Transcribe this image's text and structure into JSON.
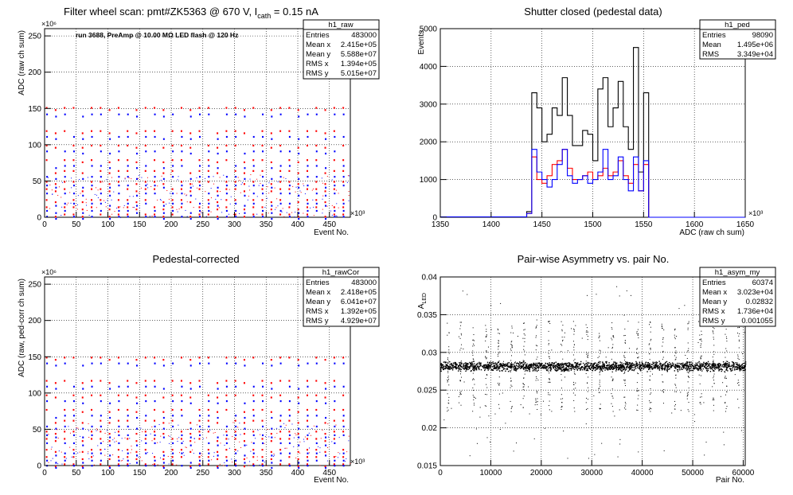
{
  "chart_data": [
    {
      "type": "scatter",
      "title": "Filter wheel scan: pmt#ZK5363 @   670 V, I",
      "title_sub": "cath",
      "title_tail": " = 0.15 nA",
      "annotation": "run 3688, PreAmp @ 10.00 MΩ LED flash @  120 Hz",
      "xlabel": "Event No.",
      "ylabel": "ADC (raw ch sum)",
      "x_exponent": "×10³",
      "y_exponent": "×10⁶",
      "xlim": [
        0,
        483
      ],
      "ylim": [
        0,
        260
      ],
      "x_ticks": [
        "0",
        "50",
        "100",
        "150",
        "200",
        "250",
        "300",
        "350",
        "400",
        "450"
      ],
      "y_ticks": [
        "0",
        "50",
        "100",
        "150",
        "200",
        "250"
      ],
      "grid": true,
      "stats": {
        "title": "h1_raw",
        "rows": [
          [
            "Entries",
            "483000"
          ],
          [
            "Mean x",
            "2.415e+05"
          ],
          [
            "Mean y",
            "5.588e+07"
          ],
          [
            "RMS x",
            "1.394e+05"
          ],
          [
            "RMS y",
            "5.015e+07"
          ]
        ]
      },
      "levels_red": [
        152,
        120,
        100,
        80,
        65,
        50,
        40,
        25,
        15,
        5
      ],
      "levels_blue": [
        143,
        112,
        92,
        72,
        57,
        45,
        34,
        20,
        10,
        2
      ],
      "colors": {
        "red": "#ff0000",
        "blue": "#0000ff"
      }
    },
    {
      "type": "line",
      "title": "Shutter closed (pedestal data)",
      "xlabel": "ADC (raw ch sum)",
      "ylabel": "Events",
      "x_exponent": "×10³",
      "xlim": [
        1350,
        1650
      ],
      "ylim": [
        0,
        5000
      ],
      "x_ticks": [
        "1350",
        "1400",
        "1450",
        "1500",
        "1550",
        "1600",
        "1650"
      ],
      "y_ticks": [
        "0",
        "1000",
        "2000",
        "3000",
        "4000",
        "5000"
      ],
      "grid": true,
      "stats": {
        "title": "h1_ped",
        "rows": [
          [
            "Entries",
            "98090"
          ],
          [
            "Mean",
            "1.495e+06"
          ],
          [
            "RMS",
            "3.349e+04"
          ]
        ]
      },
      "bin_width": 5,
      "series": [
        {
          "color": "#000000",
          "x": [
            1435,
            1440,
            1445,
            1450,
            1455,
            1460,
            1465,
            1470,
            1475,
            1480,
            1485,
            1490,
            1495,
            1500,
            1505,
            1510,
            1515,
            1520,
            1525,
            1530,
            1535,
            1540,
            1545,
            1550,
            1555
          ],
          "values": [
            150,
            3300,
            2900,
            2000,
            2200,
            2900,
            2700,
            3700,
            2700,
            1900,
            1900,
            2300,
            2200,
            1500,
            3400,
            3700,
            2400,
            2900,
            3600,
            2400,
            1800,
            4500,
            1200,
            3300,
            0
          ]
        },
        {
          "color": "#ff0000",
          "x": [
            1435,
            1440,
            1445,
            1450,
            1455,
            1460,
            1465,
            1470,
            1475,
            1480,
            1485,
            1490,
            1495,
            1500,
            1505,
            1510,
            1515,
            1520,
            1525,
            1530,
            1535,
            1540,
            1545,
            1550,
            1555
          ],
          "values": [
            100,
            1600,
            1000,
            900,
            1100,
            1400,
            1500,
            1800,
            1300,
            1000,
            1000,
            1100,
            1200,
            1000,
            1100,
            1300,
            1100,
            1200,
            1500,
            1100,
            900,
            1400,
            700,
            1400,
            0
          ]
        },
        {
          "color": "#0000ff",
          "x": [
            1435,
            1440,
            1445,
            1450,
            1455,
            1460,
            1465,
            1470,
            1475,
            1480,
            1485,
            1490,
            1495,
            1500,
            1505,
            1510,
            1515,
            1520,
            1525,
            1530,
            1535,
            1540,
            1545,
            1550,
            1555
          ],
          "values": [
            100,
            1800,
            1200,
            1000,
            800,
            1000,
            1400,
            1800,
            1100,
            900,
            1000,
            1100,
            900,
            1000,
            1200,
            1800,
            1000,
            1100,
            1600,
            1000,
            700,
            1600,
            700,
            1500,
            0
          ]
        }
      ]
    },
    {
      "type": "scatter",
      "title": "Pedestal-corrected",
      "xlabel": "Event No.",
      "ylabel": "ADC (raw, ped-corr ch sum)",
      "x_exponent": "×10³",
      "y_exponent": "×10⁶",
      "xlim": [
        0,
        483
      ],
      "ylim": [
        0,
        260
      ],
      "x_ticks": [
        "0",
        "50",
        "100",
        "150",
        "200",
        "250",
        "300",
        "350",
        "400",
        "450"
      ],
      "y_ticks": [
        "0",
        "50",
        "100",
        "150",
        "200",
        "250"
      ],
      "grid": true,
      "stats": {
        "title": "h1_rawCor",
        "rows": [
          [
            "Entries",
            "483000"
          ],
          [
            "Mean x",
            "2.418e+05"
          ],
          [
            "Mean y",
            "6.041e+07"
          ],
          [
            "RMS x",
            "1.392e+05"
          ],
          [
            "RMS y",
            "4.929e+07"
          ]
        ]
      },
      "levels_red": [
        150,
        118,
        98,
        78,
        63,
        48,
        38,
        23,
        13,
        3
      ],
      "levels_blue": [
        142,
        110,
        90,
        70,
        55,
        43,
        32,
        18,
        8,
        1
      ],
      "colors": {
        "red": "#ff0000",
        "blue": "#0000ff"
      }
    },
    {
      "type": "scatter",
      "title": "Pair-wise Asymmetry vs. pair No.",
      "xlabel": "Pair No.",
      "ylabel": "A",
      "ylabel_sub": "LED",
      "xlim": [
        0,
        60400
      ],
      "ylim": [
        0.015,
        0.04
      ],
      "x_ticks": [
        "0",
        "10000",
        "20000",
        "30000",
        "40000",
        "50000",
        "60000"
      ],
      "y_ticks": [
        "0.015",
        "0.02",
        "0.025",
        "0.03",
        "0.035",
        "0.04"
      ],
      "grid": true,
      "stats": {
        "title": "h1_asym_my",
        "rows": [
          [
            "Entries",
            "60374"
          ],
          [
            "Mean x",
            "3.023e+04"
          ],
          [
            "Mean y",
            "0.02832"
          ],
          [
            "RMS x",
            "1.736e+04"
          ],
          [
            "RMS y",
            "0.001055"
          ]
        ]
      },
      "band_center": 0.0282,
      "band_halfwidth": 0.0007,
      "spike_x": [
        1500,
        4000,
        6500,
        9000,
        11500,
        14000,
        16500,
        19000,
        21500,
        24000,
        26500,
        29000,
        31500,
        34000,
        36500,
        39000,
        41500,
        44000,
        46500,
        49000,
        51500,
        54000,
        56500,
        59000
      ]
    }
  ]
}
